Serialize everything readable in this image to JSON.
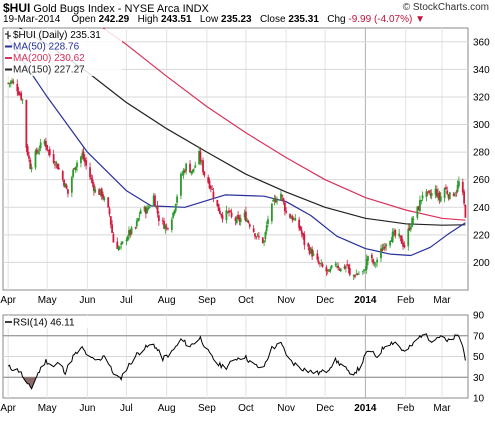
{
  "header": {
    "symbol": "$HUI",
    "name": "Gold Bugs Index - NYSE Arca  INDX",
    "date": "19-Mar-2014",
    "open_label": "Open",
    "open": "242.29",
    "high_label": "High",
    "high": "243.51",
    "low_label": "Low",
    "low": "235.23",
    "close_label": "Close",
    "close": "235.31",
    "chg_label": "Chg",
    "chg": "-9.99 (-4.07%)",
    "chg_arrow": "▼",
    "credit": "© StockCharts.com"
  },
  "colors": {
    "up": "#2a9a2a",
    "down": "#d11b3e",
    "ma50": "#27309a",
    "ma200": "#d8325a",
    "ma150": "#222222",
    "rsi": "#000000",
    "rsi_fill_low": "#8b6b6b",
    "grid": "#d8d8d8",
    "vgrid": "#e4e4e4",
    "ref_line": "#888888"
  },
  "chart_data": [
    {
      "type": "candlestick",
      "legend": [
        {
          "label": "$HUI (Daily) 235.31",
          "color": "#000000",
          "key": "price"
        },
        {
          "label": "MA(50) 228.76",
          "color": "#27309a",
          "key": "ma50"
        },
        {
          "label": "MA(200) 230.62",
          "color": "#d8325a",
          "key": "ma200"
        },
        {
          "label": "MA(150) 227.27",
          "color": "#222222",
          "key": "ma150"
        }
      ],
      "ylim": [
        180,
        370
      ],
      "yticks": [
        200,
        220,
        240,
        260,
        280,
        300,
        320,
        340,
        360
      ],
      "x_range": [
        "2013-03-28",
        "2014-03-21"
      ],
      "x_ticks": [
        {
          "label": "Apr",
          "date": "2013-04-01"
        },
        {
          "label": "May",
          "date": "2013-05-01"
        },
        {
          "label": "Jun",
          "date": "2013-06-01"
        },
        {
          "label": "Jul",
          "date": "2013-07-01"
        },
        {
          "label": "Aug",
          "date": "2013-08-01"
        },
        {
          "label": "Sep",
          "date": "2013-09-01"
        },
        {
          "label": "Oct",
          "date": "2013-10-01"
        },
        {
          "label": "Nov",
          "date": "2013-11-01"
        },
        {
          "label": "Dec",
          "date": "2013-12-01"
        },
        {
          "label": "2014",
          "date": "2014-01-01"
        },
        {
          "label": "Feb",
          "date": "2014-02-01"
        },
        {
          "label": "Mar",
          "date": "2014-03-01"
        }
      ],
      "close_path": [
        {
          "date": "2013-04-01",
          "close": 330
        },
        {
          "date": "2013-04-04",
          "close": 331
        },
        {
          "date": "2013-04-08",
          "close": 326
        },
        {
          "date": "2013-04-12",
          "close": 318
        },
        {
          "date": "2013-04-15",
          "close": 284
        },
        {
          "date": "2013-04-18",
          "close": 270
        },
        {
          "date": "2013-04-24",
          "close": 282
        },
        {
          "date": "2013-04-29",
          "close": 288
        },
        {
          "date": "2013-05-03",
          "close": 278
        },
        {
          "date": "2013-05-08",
          "close": 272
        },
        {
          "date": "2013-05-14",
          "close": 258
        },
        {
          "date": "2013-05-17",
          "close": 250
        },
        {
          "date": "2013-05-22",
          "close": 270
        },
        {
          "date": "2013-05-28",
          "close": 278
        },
        {
          "date": "2013-06-03",
          "close": 262
        },
        {
          "date": "2013-06-07",
          "close": 252
        },
        {
          "date": "2013-06-12",
          "close": 250
        },
        {
          "date": "2013-06-18",
          "close": 235
        },
        {
          "date": "2013-06-21",
          "close": 215
        },
        {
          "date": "2013-06-26",
          "close": 210
        },
        {
          "date": "2013-07-02",
          "close": 220
        },
        {
          "date": "2013-07-08",
          "close": 225
        },
        {
          "date": "2013-07-12",
          "close": 238
        },
        {
          "date": "2013-07-17",
          "close": 238
        },
        {
          "date": "2013-07-22",
          "close": 248
        },
        {
          "date": "2013-07-26",
          "close": 232
        },
        {
          "date": "2013-08-01",
          "close": 225
        },
        {
          "date": "2013-08-06",
          "close": 236
        },
        {
          "date": "2013-08-12",
          "close": 262
        },
        {
          "date": "2013-08-16",
          "close": 270
        },
        {
          "date": "2013-08-21",
          "close": 266
        },
        {
          "date": "2013-08-26",
          "close": 278
        },
        {
          "date": "2013-08-30",
          "close": 264
        },
        {
          "date": "2013-09-04",
          "close": 255
        },
        {
          "date": "2013-09-09",
          "close": 240
        },
        {
          "date": "2013-09-13",
          "close": 234
        },
        {
          "date": "2013-09-18",
          "close": 236
        },
        {
          "date": "2013-09-20",
          "close": 232
        },
        {
          "date": "2013-09-25",
          "close": 230
        },
        {
          "date": "2013-09-30",
          "close": 234
        },
        {
          "date": "2013-10-04",
          "close": 228
        },
        {
          "date": "2013-10-10",
          "close": 218
        },
        {
          "date": "2013-10-15",
          "close": 215
        },
        {
          "date": "2013-10-18",
          "close": 232
        },
        {
          "date": "2013-10-23",
          "close": 245
        },
        {
          "date": "2013-10-28",
          "close": 250
        },
        {
          "date": "2013-11-01",
          "close": 236
        },
        {
          "date": "2013-11-06",
          "close": 232
        },
        {
          "date": "2013-11-12",
          "close": 224
        },
        {
          "date": "2013-11-15",
          "close": 214
        },
        {
          "date": "2013-11-20",
          "close": 208
        },
        {
          "date": "2013-11-25",
          "close": 200
        },
        {
          "date": "2013-11-29",
          "close": 196
        },
        {
          "date": "2013-12-04",
          "close": 192
        },
        {
          "date": "2013-12-09",
          "close": 200
        },
        {
          "date": "2013-12-13",
          "close": 195
        },
        {
          "date": "2013-12-18",
          "close": 198
        },
        {
          "date": "2013-12-20",
          "close": 190
        },
        {
          "date": "2013-12-27",
          "close": 192
        },
        {
          "date": "2013-12-31",
          "close": 193
        },
        {
          "date": "2014-01-03",
          "close": 205
        },
        {
          "date": "2014-01-08",
          "close": 198
        },
        {
          "date": "2014-01-13",
          "close": 208
        },
        {
          "date": "2014-01-17",
          "close": 215
        },
        {
          "date": "2014-01-22",
          "close": 220
        },
        {
          "date": "2014-01-27",
          "close": 218
        },
        {
          "date": "2014-01-31",
          "close": 212
        },
        {
          "date": "2014-02-04",
          "close": 226
        },
        {
          "date": "2014-02-07",
          "close": 232
        },
        {
          "date": "2014-02-11",
          "close": 240
        },
        {
          "date": "2014-02-14",
          "close": 250
        },
        {
          "date": "2014-02-19",
          "close": 248
        },
        {
          "date": "2014-02-24",
          "close": 252
        },
        {
          "date": "2014-02-27",
          "close": 246
        },
        {
          "date": "2014-03-03",
          "close": 254
        },
        {
          "date": "2014-03-07",
          "close": 248
        },
        {
          "date": "2014-03-12",
          "close": 252
        },
        {
          "date": "2014-03-14",
          "close": 258
        },
        {
          "date": "2014-03-17",
          "close": 248
        },
        {
          "date": "2014-03-19",
          "close": 235
        }
      ],
      "ma50": [
        {
          "date": "2013-04-01",
          "value": 362
        },
        {
          "date": "2013-05-01",
          "value": 320
        },
        {
          "date": "2013-06-01",
          "value": 280
        },
        {
          "date": "2013-07-01",
          "value": 252
        },
        {
          "date": "2013-07-20",
          "value": 241
        },
        {
          "date": "2013-08-15",
          "value": 240
        },
        {
          "date": "2013-09-15",
          "value": 249
        },
        {
          "date": "2013-10-15",
          "value": 248
        },
        {
          "date": "2013-11-01",
          "value": 244
        },
        {
          "date": "2013-11-20",
          "value": 234
        },
        {
          "date": "2013-12-10",
          "value": 219
        },
        {
          "date": "2014-01-01",
          "value": 210
        },
        {
          "date": "2014-01-20",
          "value": 206
        },
        {
          "date": "2014-02-05",
          "value": 205
        },
        {
          "date": "2014-02-20",
          "value": 211
        },
        {
          "date": "2014-03-05",
          "value": 220
        },
        {
          "date": "2014-03-19",
          "value": 228.76
        }
      ],
      "ma150": [
        {
          "date": "2013-04-01",
          "value": 375
        },
        {
          "date": "2013-05-01",
          "value": 358
        },
        {
          "date": "2013-06-01",
          "value": 338
        },
        {
          "date": "2013-07-01",
          "value": 316
        },
        {
          "date": "2013-08-01",
          "value": 297
        },
        {
          "date": "2013-09-01",
          "value": 280
        },
        {
          "date": "2013-10-01",
          "value": 264
        },
        {
          "date": "2013-11-01",
          "value": 251
        },
        {
          "date": "2013-12-01",
          "value": 240
        },
        {
          "date": "2014-01-01",
          "value": 232
        },
        {
          "date": "2014-02-01",
          "value": 228
        },
        {
          "date": "2014-03-01",
          "value": 227
        },
        {
          "date": "2014-03-19",
          "value": 227.27
        }
      ],
      "ma200": [
        {
          "date": "2013-06-10",
          "value": 372
        },
        {
          "date": "2013-07-01",
          "value": 358
        },
        {
          "date": "2013-08-01",
          "value": 335
        },
        {
          "date": "2013-09-01",
          "value": 313
        },
        {
          "date": "2013-10-01",
          "value": 294
        },
        {
          "date": "2013-11-01",
          "value": 276
        },
        {
          "date": "2013-12-01",
          "value": 260
        },
        {
          "date": "2014-01-01",
          "value": 247
        },
        {
          "date": "2014-02-01",
          "value": 238
        },
        {
          "date": "2014-03-01",
          "value": 232
        },
        {
          "date": "2014-03-19",
          "value": 230.62
        }
      ]
    },
    {
      "type": "line",
      "legend": [
        {
          "label": "RSI(14) 46.11",
          "color": "#000000"
        }
      ],
      "ylim": [
        10,
        90
      ],
      "yticks": [
        10,
        30,
        50,
        70,
        90
      ],
      "reference_lines": [
        30,
        70
      ],
      "x_range": [
        "2013-03-28",
        "2014-03-21"
      ],
      "x_ticks": [
        {
          "label": "Apr",
          "date": "2013-04-01"
        },
        {
          "label": "May",
          "date": "2013-05-01"
        },
        {
          "label": "Jun",
          "date": "2013-06-01"
        },
        {
          "label": "Jul",
          "date": "2013-07-01"
        },
        {
          "label": "Aug",
          "date": "2013-08-01"
        },
        {
          "label": "Sep",
          "date": "2013-09-01"
        },
        {
          "label": "Oct",
          "date": "2013-10-01"
        },
        {
          "label": "Nov",
          "date": "2013-11-01"
        },
        {
          "label": "Dec",
          "date": "2013-12-01"
        },
        {
          "label": "2014",
          "date": "2014-01-01"
        },
        {
          "label": "Feb",
          "date": "2014-02-01"
        },
        {
          "label": "Mar",
          "date": "2014-03-01"
        }
      ],
      "values": [
        {
          "date": "2013-04-01",
          "value": 40
        },
        {
          "date": "2013-04-05",
          "value": 38
        },
        {
          "date": "2013-04-10",
          "value": 36
        },
        {
          "date": "2013-04-16",
          "value": 22
        },
        {
          "date": "2013-04-19",
          "value": 20
        },
        {
          "date": "2013-04-24",
          "value": 34
        },
        {
          "date": "2013-04-30",
          "value": 46
        },
        {
          "date": "2013-05-06",
          "value": 40
        },
        {
          "date": "2013-05-10",
          "value": 44
        },
        {
          "date": "2013-05-15",
          "value": 35
        },
        {
          "date": "2013-05-21",
          "value": 50
        },
        {
          "date": "2013-05-28",
          "value": 58
        },
        {
          "date": "2013-06-03",
          "value": 48
        },
        {
          "date": "2013-06-10",
          "value": 46
        },
        {
          "date": "2013-06-14",
          "value": 52
        },
        {
          "date": "2013-06-20",
          "value": 36
        },
        {
          "date": "2013-06-26",
          "value": 28
        },
        {
          "date": "2013-07-02",
          "value": 40
        },
        {
          "date": "2013-07-09",
          "value": 52
        },
        {
          "date": "2013-07-15",
          "value": 58
        },
        {
          "date": "2013-07-22",
          "value": 62
        },
        {
          "date": "2013-07-29",
          "value": 48
        },
        {
          "date": "2013-08-05",
          "value": 54
        },
        {
          "date": "2013-08-12",
          "value": 66
        },
        {
          "date": "2013-08-19",
          "value": 60
        },
        {
          "date": "2013-08-27",
          "value": 68
        },
        {
          "date": "2013-09-03",
          "value": 52
        },
        {
          "date": "2013-09-10",
          "value": 42
        },
        {
          "date": "2013-09-16",
          "value": 40
        },
        {
          "date": "2013-09-23",
          "value": 48
        },
        {
          "date": "2013-09-30",
          "value": 50
        },
        {
          "date": "2013-10-07",
          "value": 42
        },
        {
          "date": "2013-10-14",
          "value": 38
        },
        {
          "date": "2013-10-21",
          "value": 58
        },
        {
          "date": "2013-10-28",
          "value": 62
        },
        {
          "date": "2013-11-04",
          "value": 46
        },
        {
          "date": "2013-11-11",
          "value": 40
        },
        {
          "date": "2013-11-18",
          "value": 36
        },
        {
          "date": "2013-11-25",
          "value": 34
        },
        {
          "date": "2013-12-02",
          "value": 36
        },
        {
          "date": "2013-12-09",
          "value": 46
        },
        {
          "date": "2013-12-16",
          "value": 40
        },
        {
          "date": "2013-12-20",
          "value": 32
        },
        {
          "date": "2013-12-27",
          "value": 38
        },
        {
          "date": "2014-01-03",
          "value": 56
        },
        {
          "date": "2014-01-10",
          "value": 50
        },
        {
          "date": "2014-01-17",
          "value": 62
        },
        {
          "date": "2014-01-24",
          "value": 64
        },
        {
          "date": "2014-01-31",
          "value": 54
        },
        {
          "date": "2014-02-07",
          "value": 62
        },
        {
          "date": "2014-02-14",
          "value": 72
        },
        {
          "date": "2014-02-21",
          "value": 66
        },
        {
          "date": "2014-02-28",
          "value": 70
        },
        {
          "date": "2014-03-05",
          "value": 64
        },
        {
          "date": "2014-03-10",
          "value": 68
        },
        {
          "date": "2014-03-14",
          "value": 70
        },
        {
          "date": "2014-03-17",
          "value": 60
        },
        {
          "date": "2014-03-19",
          "value": 46.11
        }
      ]
    }
  ]
}
